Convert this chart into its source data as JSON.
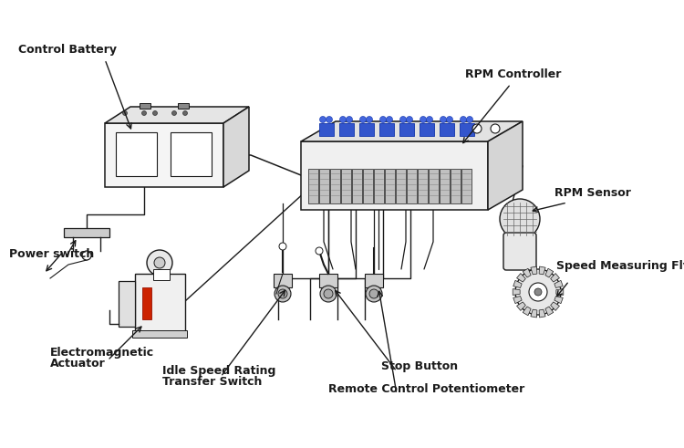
{
  "background_color": "#ffffff",
  "fig_width": 7.5,
  "fig_height": 4.91,
  "dpi": 100,
  "line_color": "#1a1a1a",
  "labels": {
    "control_battery": "Control Battery",
    "rpm_controller": "RPM Controller",
    "rpm_sensor": "RPM Sensor",
    "speed_flywheel": "Speed Measuring Flywheel",
    "power_switch": "Power switch",
    "electromagnetic_actuator_1": "Electromagnetic",
    "electromagnetic_actuator_2": "Actuator",
    "idle_speed_1": "Idle Speed Rating",
    "idle_speed_2": "Transfer Switch",
    "stop_button": "Stop Button",
    "remote_control": "Remote Control Potentiometer"
  }
}
